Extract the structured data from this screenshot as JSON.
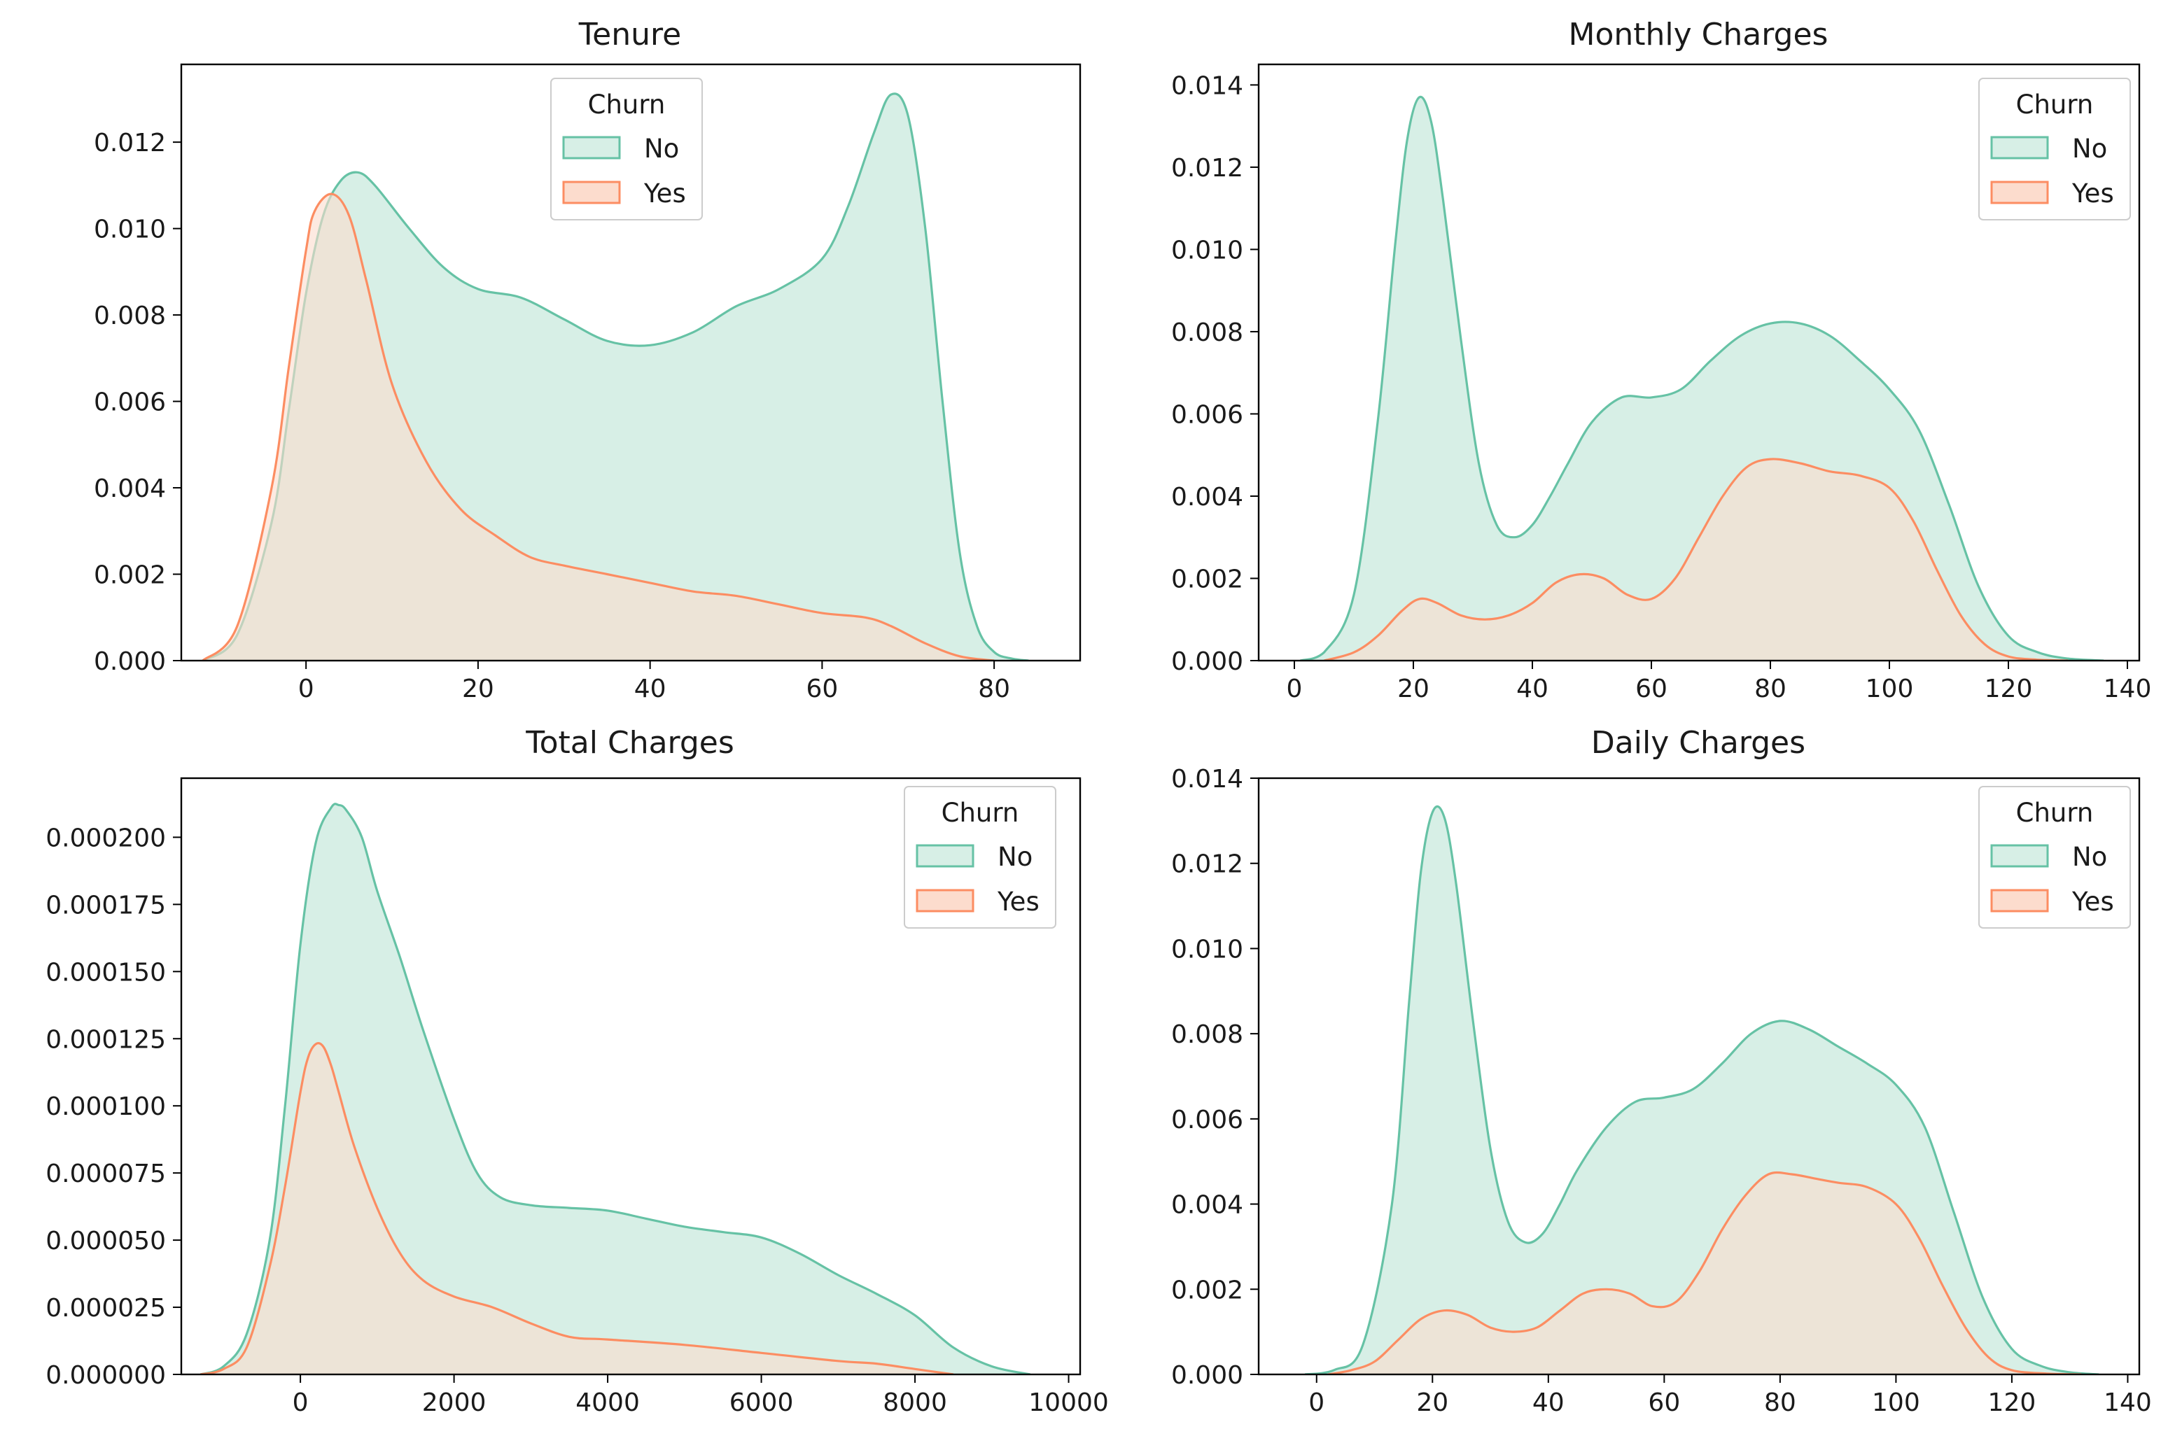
{
  "colors": {
    "no_line": "#66c2a5",
    "no_fill": "#d7efe6",
    "yes_line": "#fc8d62",
    "yes_fill": "#fcdccd",
    "overlap_fill": "#d8d8c8",
    "axis": "#000000"
  },
  "chart_data": [
    {
      "type": "area",
      "title": "Tenure",
      "xlabel": "",
      "ylabel": "",
      "xlim": [
        -14.5,
        90
      ],
      "ylim": [
        0,
        0.0138
      ],
      "xticks": [
        0,
        20,
        40,
        60,
        80
      ],
      "xtick_labels": [
        "0",
        "20",
        "40",
        "60",
        "80"
      ],
      "yticks": [
        0,
        0.002,
        0.004,
        0.006,
        0.008,
        0.01,
        0.012
      ],
      "ytick_labels": [
        "0.000",
        "0.002",
        "0.004",
        "0.006",
        "0.008",
        "0.010",
        "0.012"
      ],
      "grid": false,
      "legend": {
        "title": "Churn",
        "position": "top-center",
        "entries": [
          "No",
          "Yes"
        ]
      },
      "series": [
        {
          "name": "No",
          "x": [
            -12,
            -8,
            -4,
            -2,
            0,
            2,
            4,
            6,
            8,
            12,
            16,
            20,
            25,
            30,
            35,
            40,
            45,
            50,
            55,
            60,
            63,
            66,
            68,
            70,
            72,
            74,
            76,
            78,
            80,
            82,
            84
          ],
          "values": [
            0,
            0.0006,
            0.0032,
            0.0058,
            0.0085,
            0.0103,
            0.0111,
            0.0113,
            0.011,
            0.01,
            0.0091,
            0.0086,
            0.0084,
            0.0079,
            0.0074,
            0.0073,
            0.0076,
            0.0082,
            0.0086,
            0.0093,
            0.0105,
            0.0122,
            0.0131,
            0.0126,
            0.01,
            0.006,
            0.0025,
            0.0008,
            0.0002,
            5e-05,
            0
          ]
        },
        {
          "name": "Yes",
          "x": [
            -12,
            -8,
            -4,
            -2,
            0,
            1,
            3,
            5,
            7,
            10,
            14,
            18,
            22,
            26,
            30,
            35,
            40,
            45,
            50,
            55,
            60,
            65,
            68,
            72,
            76,
            80
          ],
          "values": [
            0,
            0.0008,
            0.004,
            0.0068,
            0.0095,
            0.0104,
            0.0108,
            0.0103,
            0.0088,
            0.0064,
            0.0046,
            0.0035,
            0.0029,
            0.0024,
            0.0022,
            0.002,
            0.0018,
            0.0016,
            0.0015,
            0.0013,
            0.0011,
            0.001,
            0.0008,
            0.0004,
            0.0001,
            0
          ]
        }
      ]
    },
    {
      "type": "area",
      "title": "Monthly Charges",
      "xlabel": "",
      "ylabel": "",
      "xlim": [
        -6,
        142
      ],
      "ylim": [
        0,
        0.0145
      ],
      "xticks": [
        0,
        20,
        40,
        60,
        80,
        100,
        120,
        140
      ],
      "xtick_labels": [
        "0",
        "20",
        "40",
        "60",
        "80",
        "100",
        "120",
        "140"
      ],
      "yticks": [
        0,
        0.002,
        0.004,
        0.006,
        0.008,
        0.01,
        0.012,
        0.014
      ],
      "ytick_labels": [
        "0.000",
        "0.002",
        "0.004",
        "0.006",
        "0.008",
        "0.010",
        "0.012",
        "0.014"
      ],
      "grid": false,
      "legend": {
        "title": "Churn",
        "position": "top-right",
        "entries": [
          "No",
          "Yes"
        ]
      },
      "series": [
        {
          "name": "No",
          "x": [
            1,
            5,
            10,
            14,
            17,
            19,
            21,
            23,
            25,
            28,
            31,
            34,
            37,
            40,
            43,
            46,
            50,
            55,
            60,
            65,
            70,
            75,
            80,
            85,
            90,
            95,
            100,
            105,
            110,
            115,
            120,
            125,
            130,
            136
          ],
          "values": [
            0,
            0.0002,
            0.0016,
            0.0058,
            0.0102,
            0.0127,
            0.0137,
            0.0131,
            0.0112,
            0.0078,
            0.0048,
            0.0033,
            0.003,
            0.0033,
            0.004,
            0.0048,
            0.0058,
            0.0064,
            0.0064,
            0.0066,
            0.0073,
            0.0079,
            0.0082,
            0.0082,
            0.0079,
            0.0073,
            0.0066,
            0.0056,
            0.0038,
            0.0018,
            0.0006,
            0.0002,
            5e-05,
            0
          ]
        },
        {
          "name": "Yes",
          "x": [
            5,
            10,
            14,
            18,
            21,
            24,
            28,
            32,
            36,
            40,
            44,
            48,
            52,
            56,
            60,
            64,
            68,
            72,
            76,
            80,
            85,
            90,
            95,
            100,
            104,
            108,
            112,
            116,
            120,
            125,
            130
          ],
          "values": [
            0,
            0.0002,
            0.0006,
            0.0012,
            0.0015,
            0.0014,
            0.0011,
            0.001,
            0.0011,
            0.0014,
            0.0019,
            0.0021,
            0.002,
            0.0016,
            0.0015,
            0.002,
            0.003,
            0.004,
            0.0047,
            0.0049,
            0.0048,
            0.0046,
            0.0045,
            0.0042,
            0.0034,
            0.0022,
            0.0011,
            0.0004,
            0.0001,
            2e-05,
            0
          ]
        }
      ]
    },
    {
      "type": "area",
      "title": "Total Charges",
      "xlabel": "",
      "ylabel": "",
      "xlim": [
        -1550,
        10150
      ],
      "ylim": [
        0,
        0.000222
      ],
      "xticks": [
        0,
        2000,
        4000,
        6000,
        8000,
        10000
      ],
      "xtick_labels": [
        "0",
        "2000",
        "4000",
        "6000",
        "8000",
        "10000"
      ],
      "yticks": [
        0,
        2.5e-05,
        5e-05,
        7.5e-05,
        0.0001,
        0.000125,
        0.00015,
        0.000175,
        0.0002
      ],
      "ytick_labels": [
        "0.000000",
        "0.000025",
        "0.000050",
        "0.000075",
        "0.000100",
        "0.000125",
        "0.000150",
        "0.000175",
        "0.000200"
      ],
      "grid": false,
      "legend": {
        "title": "Churn",
        "position": "top-right",
        "entries": [
          "No",
          "Yes"
        ]
      },
      "series": [
        {
          "name": "No",
          "x": [
            -1300,
            -1000,
            -700,
            -400,
            -200,
            0,
            200,
            400,
            500,
            600,
            800,
            1000,
            1300,
            1600,
            2000,
            2300,
            2600,
            3000,
            3500,
            4000,
            4500,
            5000,
            5500,
            6000,
            6500,
            7000,
            7500,
            8000,
            8500,
            9000,
            9500
          ],
          "values": [
            0,
            3e-06,
            1.5e-05,
            5e-05,
            0.0001,
            0.00016,
            0.000198,
            0.000211,
            0.000212,
            0.00021,
            0.0002,
            0.00018,
            0.000155,
            0.000128,
            9.5e-05,
            7.5e-05,
            6.6e-05,
            6.3e-05,
            6.2e-05,
            6.1e-05,
            5.8e-05,
            5.5e-05,
            5.3e-05,
            5.1e-05,
            4.5e-05,
            3.7e-05,
            3e-05,
            2.2e-05,
            1e-05,
            3e-06,
            0
          ]
        },
        {
          "name": "Yes",
          "x": [
            -1300,
            -1000,
            -700,
            -400,
            -200,
            0,
            100,
            200,
            300,
            400,
            500,
            700,
            1000,
            1300,
            1600,
            2000,
            2500,
            3000,
            3500,
            4000,
            5000,
            6000,
            7000,
            7500,
            8000,
            8500
          ],
          "values": [
            0,
            2e-06,
            1e-05,
            4e-05,
            7e-05,
            0.000105,
            0.000118,
            0.000123,
            0.000122,
            0.000115,
            0.000105,
            8.5e-05,
            6.2e-05,
            4.5e-05,
            3.5e-05,
            2.9e-05,
            2.5e-05,
            1.9e-05,
            1.4e-05,
            1.3e-05,
            1.1e-05,
            8e-06,
            5e-06,
            4e-06,
            2e-06,
            0
          ]
        }
      ]
    },
    {
      "type": "area",
      "title": "Daily Charges",
      "xlabel": "",
      "ylabel": "",
      "xlim": [
        -10,
        142
      ],
      "ylim": [
        0,
        0.014
      ],
      "xticks": [
        0,
        20,
        40,
        60,
        80,
        100,
        120,
        140
      ],
      "xtick_labels": [
        "0",
        "20",
        "40",
        "60",
        "80",
        "100",
        "120",
        "140"
      ],
      "yticks": [
        0,
        0.002,
        0.004,
        0.006,
        0.008,
        0.01,
        0.012,
        0.014
      ],
      "ytick_labels": [
        "0.000",
        "0.002",
        "0.004",
        "0.006",
        "0.008",
        "0.010",
        "0.012",
        "0.014"
      ],
      "grid": false,
      "legend": {
        "title": "Churn",
        "position": "top-right",
        "entries": [
          "No",
          "Yes"
        ]
      },
      "series": [
        {
          "name": "No",
          "x": [
            -2,
            3,
            8,
            13,
            16,
            18,
            20,
            22,
            24,
            27,
            30,
            33,
            36,
            39,
            42,
            45,
            50,
            55,
            60,
            65,
            70,
            75,
            80,
            85,
            90,
            95,
            100,
            105,
            110,
            115,
            120,
            125,
            130,
            135
          ],
          "values": [
            0,
            0.0001,
            0.0007,
            0.004,
            0.0088,
            0.0118,
            0.0132,
            0.0131,
            0.0116,
            0.0083,
            0.0053,
            0.0036,
            0.0031,
            0.0033,
            0.004,
            0.0048,
            0.0058,
            0.0064,
            0.0065,
            0.0067,
            0.0073,
            0.008,
            0.0083,
            0.0081,
            0.0077,
            0.0073,
            0.0068,
            0.0058,
            0.0038,
            0.0018,
            0.0006,
            0.0002,
            5e-05,
            0
          ]
        },
        {
          "name": "Yes",
          "x": [
            2,
            6,
            10,
            14,
            18,
            22,
            26,
            30,
            34,
            38,
            42,
            46,
            50,
            54,
            58,
            62,
            66,
            70,
            74,
            78,
            82,
            86,
            90,
            95,
            100,
            104,
            108,
            112,
            116,
            120,
            126,
            132
          ],
          "values": [
            0,
            0.0001,
            0.0003,
            0.0008,
            0.0013,
            0.0015,
            0.0014,
            0.0011,
            0.001,
            0.0011,
            0.0015,
            0.0019,
            0.002,
            0.0019,
            0.0016,
            0.0017,
            0.0024,
            0.0034,
            0.0042,
            0.0047,
            0.0047,
            0.0046,
            0.0045,
            0.0044,
            0.004,
            0.0032,
            0.0021,
            0.0011,
            0.0004,
            0.0001,
            2e-05,
            0
          ]
        }
      ]
    }
  ]
}
